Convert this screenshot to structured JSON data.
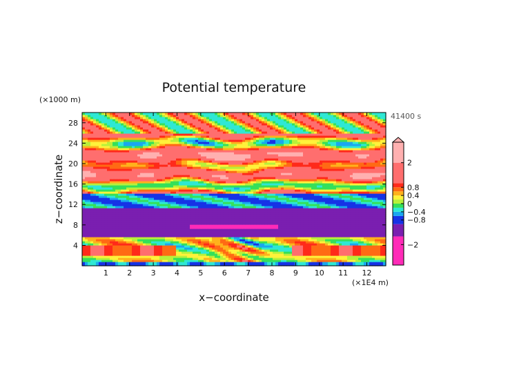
{
  "chart_data": {
    "type": "heatmap",
    "title": "Potential temperature",
    "time_label": "41400 s",
    "xlabel": "x−coordinate",
    "ylabel": "z−coordinate",
    "x_unit": "(×1E4 m)",
    "y_unit": "(×1000 m)",
    "xlim": [
      0,
      12.8
    ],
    "ylim": [
      0,
      30
    ],
    "x_ticks": [
      1,
      2,
      3,
      4,
      5,
      6,
      7,
      8,
      9,
      10,
      11,
      12
    ],
    "x_tick_labels": [
      "1",
      "2",
      "3",
      "4",
      "5",
      "6",
      "7",
      "8",
      "9",
      "10",
      "11",
      "12"
    ],
    "y_ticks": [
      4,
      8,
      12,
      16,
      20,
      24,
      28
    ],
    "y_tick_labels": [
      "4",
      "8",
      "12",
      "16",
      "20",
      "24",
      "28"
    ],
    "colorbar": {
      "min": -3.0,
      "max": 3.0,
      "ticks": [
        2,
        0.8,
        0.4,
        0,
        -0.4,
        -0.8,
        -2
      ],
      "tick_labels": [
        "2",
        "0.8",
        "0.4",
        "0",
        "−0.4",
        "−0.8",
        "−2"
      ],
      "bands": [
        {
          "lo": -3.0,
          "hi": -1.6,
          "color": "#ff2bb8"
        },
        {
          "lo": -1.6,
          "hi": -1.0,
          "color": "#7a1fb0"
        },
        {
          "lo": -1.0,
          "hi": -0.6,
          "color": "#1633e6"
        },
        {
          "lo": -0.6,
          "hi": -0.4,
          "color": "#19a7f0"
        },
        {
          "lo": -0.4,
          "hi": -0.2,
          "color": "#2ee8d4"
        },
        {
          "lo": -0.2,
          "hi": 0.0,
          "color": "#34e05a"
        },
        {
          "lo": 0.0,
          "hi": 0.2,
          "color": "#b8f03a"
        },
        {
          "lo": 0.2,
          "hi": 0.4,
          "color": "#fff23a"
        },
        {
          "lo": 0.4,
          "hi": 0.6,
          "color": "#ffb21c"
        },
        {
          "lo": 0.6,
          "hi": 0.8,
          "color": "#ff6a14"
        },
        {
          "lo": 0.8,
          "hi": 1.0,
          "color": "#ff2a1a"
        },
        {
          "lo": 1.0,
          "hi": 2.0,
          "color": "#ff6e6e"
        },
        {
          "lo": 2.0,
          "hi": 3.0,
          "color": "#ffb0b0"
        }
      ]
    },
    "field_description_bands": [
      {
        "z": [
          0,
          2.5
        ],
        "mean": -0.2
      },
      {
        "z": [
          2.5,
          5.5
        ],
        "mean": 0.3
      },
      {
        "z": [
          5.5,
          11.5
        ],
        "mean": -1.3
      },
      {
        "z": [
          11.5,
          14
        ],
        "mean": -0.5
      },
      {
        "z": [
          14,
          28
        ],
        "mean": 0.8
      },
      {
        "z": [
          28,
          30
        ],
        "mean": 0.4
      }
    ]
  }
}
